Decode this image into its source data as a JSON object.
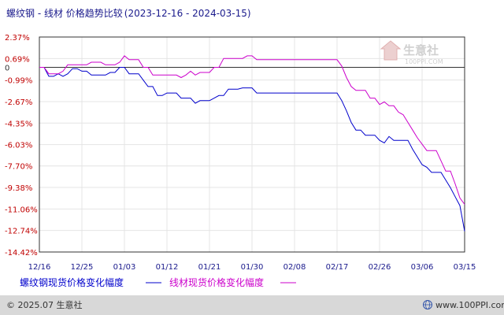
{
  "chart_data": {
    "type": "line",
    "title": "螺纹钢 - 线材 价格趋势比较",
    "date_range": "(2023-12-16 - 2024-03-15)",
    "y_ticks": [
      "2.37%",
      "0.69%",
      "0",
      "-0.99%",
      "-2.67%",
      "-4.35%",
      "-6.03%",
      "-7.70%",
      "-9.38%",
      "-11.06%",
      "-12.74%",
      "-14.42%"
    ],
    "y_tick_values": [
      2.37,
      0.69,
      0,
      -0.99,
      -2.67,
      -4.35,
      -6.03,
      -7.7,
      -9.38,
      -11.06,
      -12.74,
      -14.42
    ],
    "ylim": [
      -14.42,
      2.37
    ],
    "x_ticks": [
      "12/16",
      "12/25",
      "01/03",
      "01/12",
      "01/21",
      "01/30",
      "02/08",
      "02/17",
      "02/26",
      "03/06",
      "03/15"
    ],
    "x_tick_days": [
      0,
      9,
      18,
      27,
      36,
      45,
      54,
      63,
      72,
      81,
      90
    ],
    "grid": true,
    "legend_position": "bottom",
    "series": [
      {
        "name": "螺纹钢现货价格变化幅度",
        "color": "#0000cc",
        "points": [
          [
            0,
            0
          ],
          [
            1,
            0
          ],
          [
            2,
            -0.7
          ],
          [
            3,
            -0.7
          ],
          [
            4,
            -0.5
          ],
          [
            5,
            -0.7
          ],
          [
            6,
            -0.5
          ],
          [
            7,
            -0.1
          ],
          [
            8,
            -0.1
          ],
          [
            9,
            -0.3
          ],
          [
            10,
            -0.3
          ],
          [
            11,
            -0.6
          ],
          [
            12,
            -0.6
          ],
          [
            13,
            -0.6
          ],
          [
            14,
            -0.6
          ],
          [
            15,
            -0.4
          ],
          [
            16,
            -0.4
          ],
          [
            17,
            0
          ],
          [
            18,
            0
          ],
          [
            19,
            -0.5
          ],
          [
            20,
            -0.5
          ],
          [
            21,
            -0.5
          ],
          [
            22,
            -1.0
          ],
          [
            23,
            -1.5
          ],
          [
            24,
            -1.5
          ],
          [
            25,
            -2.2
          ],
          [
            26,
            -2.2
          ],
          [
            27,
            -2.0
          ],
          [
            28,
            -2.0
          ],
          [
            29,
            -2.0
          ],
          [
            30,
            -2.4
          ],
          [
            31,
            -2.4
          ],
          [
            32,
            -2.4
          ],
          [
            33,
            -2.8
          ],
          [
            34,
            -2.6
          ],
          [
            35,
            -2.6
          ],
          [
            36,
            -2.6
          ],
          [
            37,
            -2.4
          ],
          [
            38,
            -2.2
          ],
          [
            39,
            -2.2
          ],
          [
            40,
            -1.7
          ],
          [
            41,
            -1.7
          ],
          [
            42,
            -1.7
          ],
          [
            43,
            -1.6
          ],
          [
            44,
            -1.6
          ],
          [
            45,
            -1.6
          ],
          [
            46,
            -2.0
          ],
          [
            47,
            -2.0
          ],
          [
            48,
            -2.0
          ],
          [
            49,
            -2.0
          ],
          [
            50,
            -2.0
          ],
          [
            51,
            -2.0
          ],
          [
            52,
            -2.0
          ],
          [
            53,
            -2.0
          ],
          [
            54,
            -2.0
          ],
          [
            55,
            -2.0
          ],
          [
            56,
            -2.0
          ],
          [
            57,
            -2.0
          ],
          [
            58,
            -2.0
          ],
          [
            59,
            -2.0
          ],
          [
            60,
            -2.0
          ],
          [
            61,
            -2.0
          ],
          [
            62,
            -2.0
          ],
          [
            63,
            -2.0
          ],
          [
            64,
            -2.6
          ],
          [
            65,
            -3.4
          ],
          [
            66,
            -4.3
          ],
          [
            67,
            -4.9
          ],
          [
            68,
            -4.9
          ],
          [
            69,
            -5.3
          ],
          [
            70,
            -5.3
          ],
          [
            71,
            -5.3
          ],
          [
            72,
            -5.7
          ],
          [
            73,
            -5.9
          ],
          [
            74,
            -5.4
          ],
          [
            75,
            -5.7
          ],
          [
            76,
            -5.7
          ],
          [
            77,
            -5.7
          ],
          [
            78,
            -5.7
          ],
          [
            79,
            -6.4
          ],
          [
            80,
            -7.0
          ],
          [
            81,
            -7.6
          ],
          [
            82,
            -7.8
          ],
          [
            83,
            -8.2
          ],
          [
            84,
            -8.2
          ],
          [
            85,
            -8.2
          ],
          [
            86,
            -8.8
          ],
          [
            87,
            -9.4
          ],
          [
            88,
            -10.1
          ],
          [
            89,
            -10.8
          ],
          [
            90,
            -12.8
          ]
        ]
      },
      {
        "name": "线材现货价格变化幅度",
        "color": "#cc00cc",
        "points": [
          [
            0,
            0
          ],
          [
            1,
            0
          ],
          [
            2,
            -0.5
          ],
          [
            3,
            -0.5
          ],
          [
            4,
            -0.5
          ],
          [
            5,
            -0.3
          ],
          [
            6,
            0.2
          ],
          [
            7,
            0.2
          ],
          [
            8,
            0.2
          ],
          [
            9,
            0.2
          ],
          [
            10,
            0.2
          ],
          [
            11,
            0.4
          ],
          [
            12,
            0.4
          ],
          [
            13,
            0.4
          ],
          [
            14,
            0.2
          ],
          [
            15,
            0.2
          ],
          [
            16,
            0.2
          ],
          [
            17,
            0.4
          ],
          [
            18,
            0.9
          ],
          [
            19,
            0.6
          ],
          [
            20,
            0.6
          ],
          [
            21,
            0.6
          ],
          [
            22,
            0
          ],
          [
            23,
            0
          ],
          [
            24,
            -0.6
          ],
          [
            25,
            -0.6
          ],
          [
            26,
            -0.6
          ],
          [
            27,
            -0.6
          ],
          [
            28,
            -0.6
          ],
          [
            29,
            -0.6
          ],
          [
            30,
            -0.8
          ],
          [
            31,
            -0.6
          ],
          [
            32,
            -0.3
          ],
          [
            33,
            -0.6
          ],
          [
            34,
            -0.4
          ],
          [
            35,
            -0.4
          ],
          [
            36,
            -0.4
          ],
          [
            37,
            0
          ],
          [
            38,
            0
          ],
          [
            39,
            0.7
          ],
          [
            40,
            0.7
          ],
          [
            41,
            0.7
          ],
          [
            42,
            0.7
          ],
          [
            43,
            0.7
          ],
          [
            44,
            0.9
          ],
          [
            45,
            0.9
          ],
          [
            46,
            0.6
          ],
          [
            47,
            0.6
          ],
          [
            48,
            0.6
          ],
          [
            49,
            0.6
          ],
          [
            50,
            0.6
          ],
          [
            51,
            0.6
          ],
          [
            52,
            0.6
          ],
          [
            53,
            0.6
          ],
          [
            54,
            0.6
          ],
          [
            55,
            0.6
          ],
          [
            56,
            0.6
          ],
          [
            57,
            0.6
          ],
          [
            58,
            0.6
          ],
          [
            59,
            0.6
          ],
          [
            60,
            0.6
          ],
          [
            61,
            0.6
          ],
          [
            62,
            0.6
          ],
          [
            63,
            0.6
          ],
          [
            64,
            0.1
          ],
          [
            65,
            -0.8
          ],
          [
            66,
            -1.5
          ],
          [
            67,
            -1.8
          ],
          [
            68,
            -1.8
          ],
          [
            69,
            -1.8
          ],
          [
            70,
            -2.4
          ],
          [
            71,
            -2.4
          ],
          [
            72,
            -2.9
          ],
          [
            73,
            -2.7
          ],
          [
            74,
            -3.0
          ],
          [
            75,
            -3.0
          ],
          [
            76,
            -3.5
          ],
          [
            77,
            -3.7
          ],
          [
            78,
            -4.3
          ],
          [
            79,
            -4.9
          ],
          [
            80,
            -5.5
          ],
          [
            81,
            -6.0
          ],
          [
            82,
            -6.5
          ],
          [
            83,
            -6.5
          ],
          [
            84,
            -6.5
          ],
          [
            85,
            -7.3
          ],
          [
            86,
            -8.1
          ],
          [
            87,
            -8.1
          ],
          [
            88,
            -9.1
          ],
          [
            89,
            -10.2
          ],
          [
            90,
            -10.7
          ]
        ]
      }
    ]
  },
  "watermark": {
    "cn": "生意社",
    "url": "100PPI.COM"
  },
  "footer": {
    "left": "© 2025.07 生意社",
    "right": "www.100PPI.com"
  },
  "colors": {
    "footer_bg": "#d8d8d8",
    "grid": "#e4e4e4",
    "axis": "#333333"
  }
}
